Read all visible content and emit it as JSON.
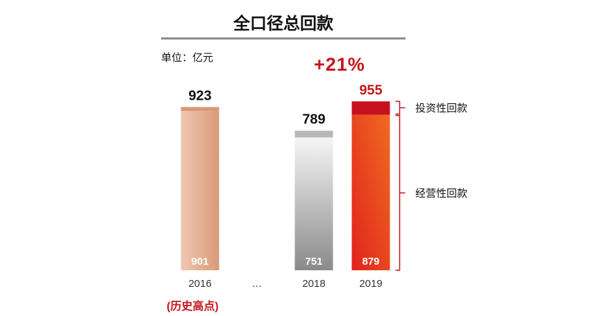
{
  "header": {
    "title": "全口径总回款",
    "unit": "单位：亿元",
    "growth": "+21%",
    "note": "(历史高点)"
  },
  "legend": {
    "investment": "投资性回款",
    "operating": "经营性回款"
  },
  "colors": {
    "accent_red": "#c4161c",
    "bar_2016": "#e3a68a",
    "bar_2018": "#a6a6a6",
    "bar_2019": "#e8431f"
  },
  "chart_data": {
    "type": "bar",
    "stacked": true,
    "categories": [
      "2016",
      "…",
      "2018",
      "2019"
    ],
    "series": [
      {
        "name": "经营性回款",
        "values": [
          901,
          null,
          751,
          879
        ]
      },
      {
        "name": "投资性回款",
        "values": [
          22,
          null,
          38,
          76
        ]
      }
    ],
    "totals": [
      923,
      null,
      789,
      955
    ],
    "total_labels": [
      "923",
      "",
      "789",
      "955"
    ],
    "segment_labels": [
      "901",
      "",
      "751",
      "879"
    ],
    "ylim": [
      0,
      960
    ],
    "grid": false,
    "legend": "right",
    "title": "全口径总回款"
  }
}
